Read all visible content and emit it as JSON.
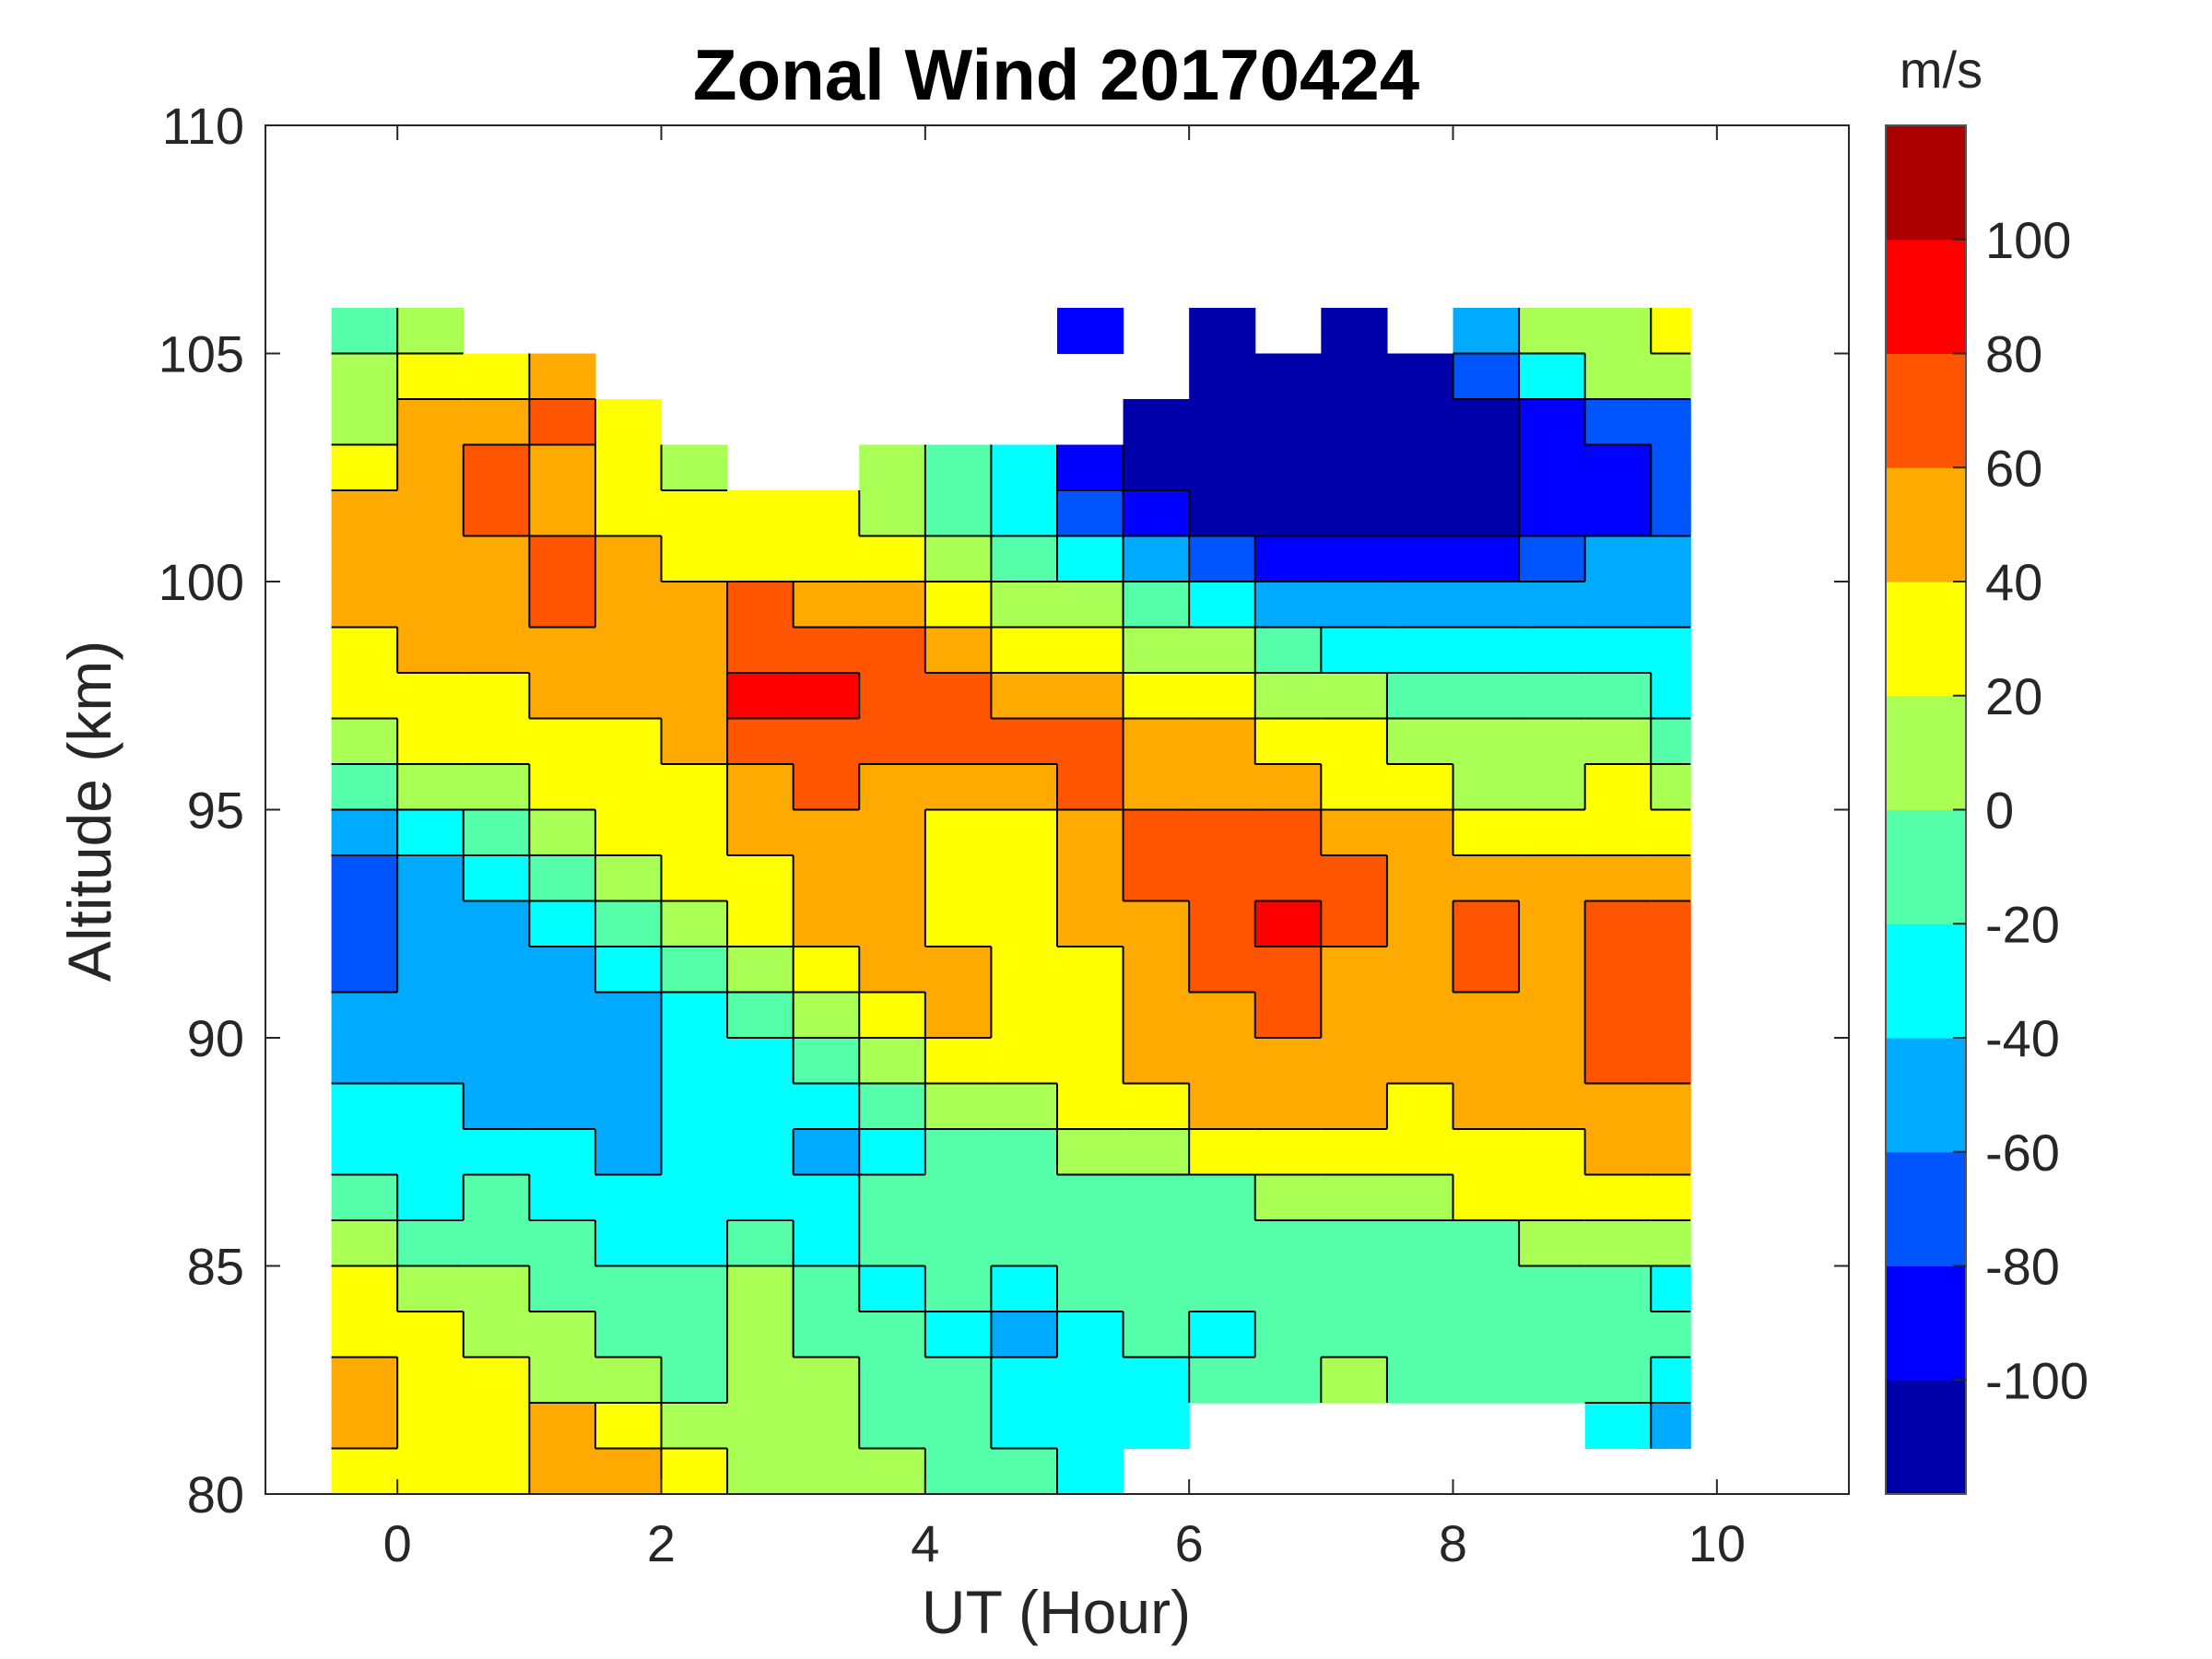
{
  "chart_data": {
    "type": "heatmap",
    "subtype": "filled-contour",
    "title": "Zonal Wind 20170424",
    "xlabel": "UT (Hour)",
    "ylabel": "Altitude (km)",
    "xlim": [
      -1,
      11
    ],
    "ylim": [
      80,
      110
    ],
    "xticks": [
      "0",
      "2",
      "4",
      "6",
      "8",
      "10"
    ],
    "xtick_values": [
      0,
      2,
      4,
      6,
      8,
      10
    ],
    "yticks": [
      "80",
      "85",
      "90",
      "95",
      "100",
      "105",
      "110"
    ],
    "ytick_values": [
      80,
      85,
      90,
      95,
      100,
      105,
      110
    ],
    "grid": false,
    "colorbar": {
      "label": "m/s",
      "range": [
        -120,
        120
      ],
      "levels": [
        -120,
        -100,
        -80,
        -60,
        -40,
        -20,
        0,
        20,
        40,
        60,
        80,
        100,
        120
      ],
      "ticks": [
        "-100",
        "-80",
        "-60",
        "-40",
        "-20",
        "0",
        "20",
        "40",
        "60",
        "80",
        "100"
      ],
      "tick_values": [
        -100,
        -80,
        -60,
        -40,
        -20,
        0,
        20,
        40,
        60,
        80,
        100
      ],
      "colors": [
        "#0000aa",
        "#0000ff",
        "#0055ff",
        "#00aaff",
        "#00ffff",
        "#55ffaa",
        "#aaff55",
        "#ffff00",
        "#ffaa00",
        "#ff5500",
        "#ff0000",
        "#aa0000"
      ]
    },
    "x": [
      -0.25,
      0.25,
      0.75,
      1.25,
      1.75,
      2.25,
      2.75,
      3.25,
      3.75,
      4.25,
      4.75,
      5.25,
      5.75,
      6.25,
      6.75,
      7.25,
      7.75,
      8.25,
      8.75,
      9.25,
      9.75
    ],
    "x_cell_width": 0.5,
    "y": [
      105.5,
      104.5,
      103.5,
      102.5,
      101.5,
      100.5,
      99.5,
      98.5,
      97.5,
      96.5,
      95.5,
      94.5,
      93.5,
      92.5,
      91.5,
      90.5,
      89.5,
      88.5,
      87.5,
      86.5,
      85.5,
      84.5,
      83.5,
      82.5,
      81.5,
      80.5
    ],
    "y_cell_height": 1,
    "z_units": "m/s",
    "z": [
      [
        -10,
        10,
        null,
        null,
        null,
        null,
        null,
        null,
        null,
        null,
        null,
        -90,
        null,
        -110,
        null,
        -110,
        null,
        -50,
        10,
        10,
        30
      ],
      [
        10,
        30,
        30,
        50,
        null,
        null,
        null,
        null,
        null,
        null,
        null,
        null,
        null,
        -110,
        -110,
        -110,
        -110,
        -70,
        -30,
        10,
        10
      ],
      [
        10,
        50,
        50,
        70,
        30,
        null,
        null,
        null,
        null,
        null,
        null,
        null,
        -110,
        -110,
        -110,
        -110,
        -110,
        -110,
        -90,
        -70,
        -70
      ],
      [
        30,
        50,
        70,
        50,
        30,
        10,
        null,
        null,
        10,
        -10,
        -30,
        -90,
        -110,
        -110,
        -110,
        -110,
        -110,
        -110,
        -90,
        -90,
        -70
      ],
      [
        50,
        50,
        70,
        50,
        30,
        30,
        30,
        30,
        10,
        -10,
        -30,
        -70,
        -90,
        -110,
        -110,
        -110,
        -110,
        -110,
        -90,
        -90,
        -70
      ],
      [
        50,
        50,
        50,
        70,
        50,
        30,
        30,
        30,
        30,
        10,
        -10,
        -30,
        -50,
        -70,
        -90,
        -90,
        -90,
        -90,
        -70,
        -50,
        -50
      ],
      [
        50,
        50,
        50,
        70,
        50,
        50,
        70,
        50,
        50,
        30,
        10,
        10,
        -10,
        -30,
        -50,
        -50,
        -50,
        -50,
        -50,
        -50,
        -50
      ],
      [
        30,
        50,
        50,
        50,
        50,
        50,
        70,
        70,
        70,
        50,
        30,
        30,
        10,
        10,
        -10,
        -30,
        -30,
        -30,
        -30,
        -30,
        -30
      ],
      [
        30,
        30,
        30,
        50,
        50,
        50,
        90,
        90,
        70,
        70,
        50,
        50,
        30,
        30,
        10,
        10,
        -10,
        -10,
        -10,
        -10,
        -30
      ],
      [
        10,
        30,
        30,
        30,
        30,
        50,
        70,
        70,
        70,
        70,
        70,
        70,
        50,
        50,
        30,
        30,
        10,
        10,
        10,
        10,
        -10
      ],
      [
        -10,
        10,
        10,
        30,
        30,
        30,
        50,
        70,
        50,
        50,
        50,
        70,
        50,
        50,
        50,
        30,
        30,
        10,
        10,
        30,
        10
      ],
      [
        -50,
        -30,
        -10,
        10,
        30,
        30,
        50,
        50,
        50,
        30,
        30,
        50,
        70,
        70,
        70,
        50,
        50,
        30,
        30,
        30,
        30
      ],
      [
        -70,
        -50,
        -30,
        -10,
        10,
        30,
        30,
        50,
        50,
        30,
        30,
        50,
        70,
        70,
        70,
        70,
        50,
        50,
        50,
        50,
        50
      ],
      [
        -70,
        -50,
        -50,
        -30,
        -10,
        10,
        30,
        50,
        50,
        30,
        30,
        50,
        50,
        70,
        90,
        70,
        50,
        70,
        50,
        70,
        70
      ],
      [
        -70,
        -50,
        -50,
        -50,
        -30,
        -10,
        10,
        30,
        50,
        50,
        30,
        30,
        50,
        70,
        70,
        50,
        50,
        70,
        50,
        70,
        70
      ],
      [
        -50,
        -50,
        -50,
        -50,
        -50,
        -30,
        -10,
        10,
        30,
        50,
        30,
        30,
        50,
        50,
        70,
        50,
        50,
        50,
        50,
        70,
        70
      ],
      [
        -50,
        -50,
        -50,
        -50,
        -50,
        -30,
        -30,
        -10,
        10,
        30,
        30,
        30,
        50,
        50,
        50,
        50,
        50,
        50,
        50,
        70,
        70
      ],
      [
        -30,
        -30,
        -50,
        -50,
        -50,
        -30,
        -30,
        -30,
        -10,
        10,
        10,
        30,
        30,
        50,
        50,
        50,
        30,
        50,
        50,
        50,
        50
      ],
      [
        -30,
        -30,
        -30,
        -30,
        -50,
        -30,
        -30,
        -50,
        -30,
        -10,
        -10,
        10,
        10,
        30,
        30,
        30,
        30,
        30,
        30,
        50,
        50
      ],
      [
        -10,
        -30,
        -10,
        -30,
        -30,
        -30,
        -30,
        -30,
        -10,
        -10,
        -10,
        -10,
        -10,
        -10,
        10,
        10,
        10,
        30,
        30,
        30,
        30
      ],
      [
        10,
        -10,
        -10,
        -10,
        -30,
        -30,
        -10,
        -30,
        -10,
        -10,
        -10,
        -10,
        -10,
        -10,
        -10,
        -10,
        -10,
        -10,
        10,
        10,
        10
      ],
      [
        30,
        10,
        10,
        -10,
        -10,
        -10,
        10,
        -10,
        -30,
        -10,
        -30,
        -10,
        -10,
        -10,
        -10,
        -10,
        -10,
        -10,
        -10,
        -10,
        -30
      ],
      [
        30,
        30,
        10,
        10,
        -10,
        -10,
        10,
        -10,
        -10,
        -30,
        -50,
        -30,
        -10,
        -30,
        -10,
        -10,
        -10,
        -10,
        -10,
        -10,
        -10
      ],
      [
        50,
        30,
        30,
        10,
        10,
        -10,
        10,
        10,
        -10,
        -10,
        -30,
        -30,
        -30,
        -10,
        -10,
        10,
        -10,
        -10,
        -10,
        -10,
        -30
      ],
      [
        50,
        30,
        30,
        50,
        30,
        10,
        10,
        10,
        -10,
        -10,
        -30,
        -30,
        -30,
        null,
        null,
        null,
        null,
        null,
        null,
        -30,
        -50
      ],
      [
        30,
        30,
        30,
        50,
        50,
        30,
        10,
        10,
        10,
        -10,
        -10,
        -30,
        null,
        null,
        null,
        null,
        null,
        null,
        null,
        null,
        null
      ]
    ]
  }
}
